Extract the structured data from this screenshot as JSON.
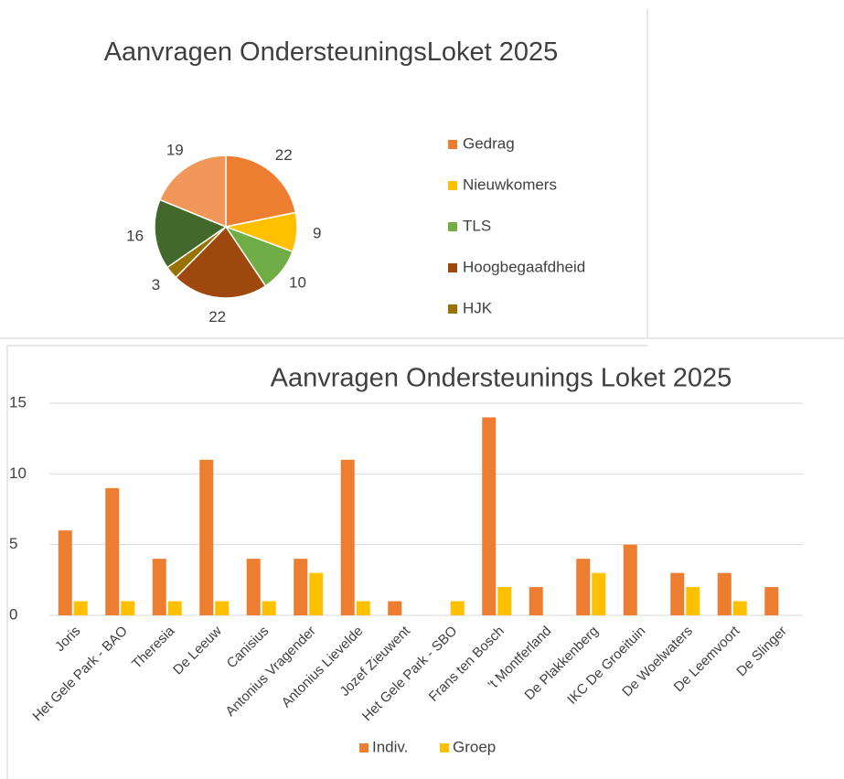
{
  "chart_data": [
    {
      "type": "pie",
      "title": "Aanvragen OndersteuningsLoket 2025",
      "categories": [
        "Gedrag",
        "Nieuwkomers",
        "TLS",
        "Hoogbegaafdheid",
        "HJK",
        null,
        null
      ],
      "values": [
        22,
        9,
        10,
        22,
        3,
        16,
        19
      ],
      "colors": [
        "#ed7d31",
        "#ffc000",
        "#70ad47",
        "#9e480e",
        "#997300",
        "#43682b",
        "#f1975a"
      ]
    },
    {
      "type": "bar",
      "title": "Aanvragen Ondersteunings Loket 2025",
      "categories": [
        "Joris",
        "Het Gele Park - BAO",
        "Theresia",
        "De Leeuw",
        "Canisius",
        "Antonius Vragender",
        "Antonius Lievelde",
        "Jozef Zieuwent",
        "Het Gele Park - SBO",
        "Frans ten Bosch",
        "'t Montferland",
        "De Plakkenberg",
        "IKC De Groeituin",
        "De Woelwaters",
        "De Leemvoort",
        "De Slinger"
      ],
      "series": [
        {
          "name": "Indiv.",
          "color": "#ed7d31",
          "values": [
            6,
            9,
            4,
            11,
            4,
            4,
            11,
            1,
            null,
            14,
            2,
            4,
            5,
            3,
            3,
            2
          ]
        },
        {
          "name": "Groep",
          "color": "#ffc000",
          "values": [
            1,
            1,
            1,
            1,
            1,
            3,
            1,
            null,
            1,
            2,
            null,
            3,
            null,
            2,
            1,
            null
          ]
        }
      ],
      "ylim": [
        0,
        15
      ],
      "yticks": [
        0,
        5,
        10,
        15
      ],
      "grid": true,
      "legend": "bottom"
    }
  ]
}
